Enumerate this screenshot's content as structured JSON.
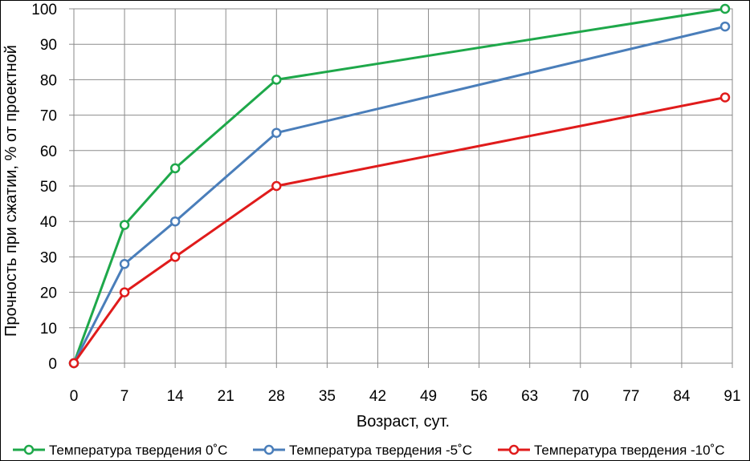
{
  "chart_data": {
    "type": "line",
    "xlabel": "Возраст, сут.",
    "ylabel": "Прочность при сжатии, % от проектной",
    "xlim": [
      0,
      91
    ],
    "ylim": [
      0,
      100
    ],
    "x_ticks": [
      "0",
      "7",
      "14",
      "21",
      "28",
      "35",
      "42",
      "49",
      "56",
      "63",
      "70",
      "77",
      "84",
      "91"
    ],
    "y_ticks": [
      "0",
      "10",
      "20",
      "30",
      "40",
      "50",
      "60",
      "70",
      "80",
      "90",
      "100"
    ],
    "grid": true,
    "legend_position": "bottom",
    "series": [
      {
        "name": "Температура твердения 0˚С",
        "color": "#1ea84a",
        "x": [
          0,
          7,
          14,
          28,
          90
        ],
        "y": [
          0,
          39,
          55,
          80,
          100
        ]
      },
      {
        "name": "Температура твердения -5˚С",
        "color": "#4a7eba",
        "x": [
          0,
          7,
          14,
          28,
          90
        ],
        "y": [
          0,
          28,
          40,
          65,
          95
        ]
      },
      {
        "name": "Температура твердения -10˚С",
        "color": "#e01b1b",
        "x": [
          0,
          7,
          14,
          28,
          90
        ],
        "y": [
          0,
          20,
          30,
          50,
          75
        ]
      }
    ]
  }
}
